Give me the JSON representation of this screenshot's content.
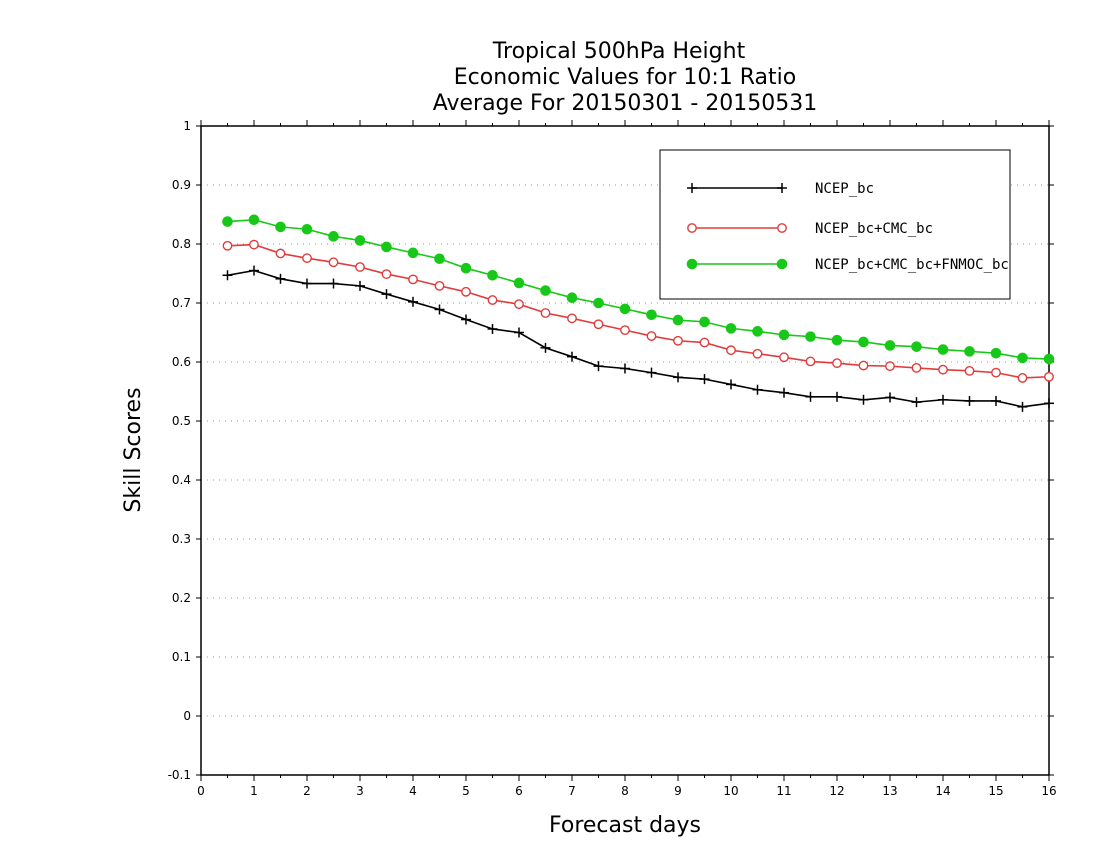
{
  "chart_data": {
    "type": "line",
    "title_lines": [
      "Tropical 500hPa Height",
      "Economic Values for 10:1 Ratio",
      "Average For 20150301 - 20150531"
    ],
    "xlabel": "Forecast days",
    "ylabel": "Skill Scores",
    "xlim": [
      0,
      16
    ],
    "ylim": [
      -0.1,
      1
    ],
    "xticks": [
      "0",
      "1",
      "2",
      "3",
      "4",
      "5",
      "6",
      "7",
      "8",
      "9",
      "10",
      "11",
      "12",
      "13",
      "14",
      "15",
      "16"
    ],
    "yticks": [
      "-0.1",
      "0",
      "0.1",
      "0.2",
      "0.3",
      "0.4",
      "0.5",
      "0.6",
      "0.7",
      "0.8",
      "0.9",
      "1"
    ],
    "grid": "horizontal-dotted",
    "legend_position": "top-right",
    "x": [
      0.5,
      1,
      1.5,
      2,
      2.5,
      3,
      3.5,
      4,
      4.5,
      5,
      5.5,
      6,
      6.5,
      7,
      7.5,
      8,
      8.5,
      9,
      9.5,
      10,
      10.5,
      11,
      11.5,
      12,
      12.5,
      13,
      13.5,
      14,
      14.5,
      15,
      15.5,
      16
    ],
    "series": [
      {
        "name": "NCEP_bc",
        "color": "#000000",
        "marker": "plus",
        "values": [
          0.747,
          0.755,
          0.741,
          0.733,
          0.733,
          0.729,
          0.715,
          0.702,
          0.689,
          0.672,
          0.656,
          0.65,
          0.624,
          0.609,
          0.593,
          0.589,
          0.582,
          0.574,
          0.571,
          0.562,
          0.553,
          0.548,
          0.541,
          0.541,
          0.536,
          0.54,
          0.532,
          0.536,
          0.534,
          0.534,
          0.524,
          0.53
        ]
      },
      {
        "name": "NCEP_bc+CMC_bc",
        "color": "#e03c3c",
        "marker": "open-circle",
        "values": [
          0.797,
          0.799,
          0.784,
          0.776,
          0.769,
          0.761,
          0.749,
          0.74,
          0.729,
          0.719,
          0.705,
          0.698,
          0.683,
          0.674,
          0.664,
          0.654,
          0.644,
          0.636,
          0.633,
          0.62,
          0.614,
          0.608,
          0.601,
          0.598,
          0.594,
          0.593,
          0.59,
          0.587,
          0.585,
          0.582,
          0.573,
          0.575
        ]
      },
      {
        "name": "NCEP_bc+CMC_bc+FNMOC_bc",
        "color": "#18c818",
        "marker": "filled-circle",
        "values": [
          0.838,
          0.841,
          0.829,
          0.825,
          0.813,
          0.806,
          0.795,
          0.785,
          0.775,
          0.759,
          0.747,
          0.734,
          0.721,
          0.709,
          0.7,
          0.69,
          0.68,
          0.671,
          0.668,
          0.657,
          0.652,
          0.646,
          0.643,
          0.637,
          0.634,
          0.628,
          0.626,
          0.621,
          0.618,
          0.615,
          0.607,
          0.605
        ]
      }
    ]
  }
}
